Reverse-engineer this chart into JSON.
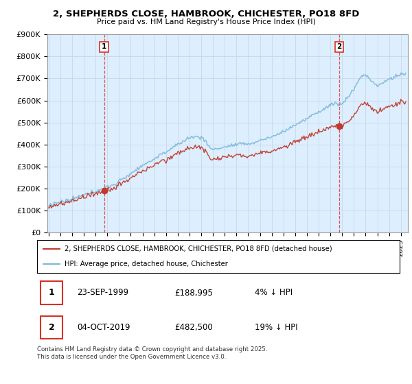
{
  "title": "2, SHEPHERDS CLOSE, HAMBROOK, CHICHESTER, PO18 8FD",
  "subtitle": "Price paid vs. HM Land Registry's House Price Index (HPI)",
  "ylim": [
    0,
    900000
  ],
  "ytick_labels": [
    "£0",
    "£100K",
    "£200K",
    "£300K",
    "£400K",
    "£500K",
    "£600K",
    "£700K",
    "£800K",
    "£900K"
  ],
  "ytick_values": [
    0,
    100000,
    200000,
    300000,
    400000,
    500000,
    600000,
    700000,
    800000,
    900000
  ],
  "xlim_start": 1994.9,
  "xlim_end": 2025.6,
  "sale1_date": 1999.73,
  "sale1_price": 188995,
  "sale2_date": 2019.76,
  "sale2_price": 482500,
  "hpi_line_color": "#7ab8d9",
  "price_line_color": "#c0392b",
  "vline_color": "#d73027",
  "chart_bg_color": "#ddeeff",
  "legend_line1": "2, SHEPHERDS CLOSE, HAMBROOK, CHICHESTER, PO18 8FD (detached house)",
  "legend_line2": "HPI: Average price, detached house, Chichester",
  "annotation1_date": "23-SEP-1999",
  "annotation1_price": "£188,995",
  "annotation1_pct": "4% ↓ HPI",
  "annotation2_date": "04-OCT-2019",
  "annotation2_price": "£482,500",
  "annotation2_pct": "19% ↓ HPI",
  "footer": "Contains HM Land Registry data © Crown copyright and database right 2025.\nThis data is licensed under the Open Government Licence v3.0.",
  "background_color": "#ffffff",
  "grid_color": "#c8d8e8"
}
